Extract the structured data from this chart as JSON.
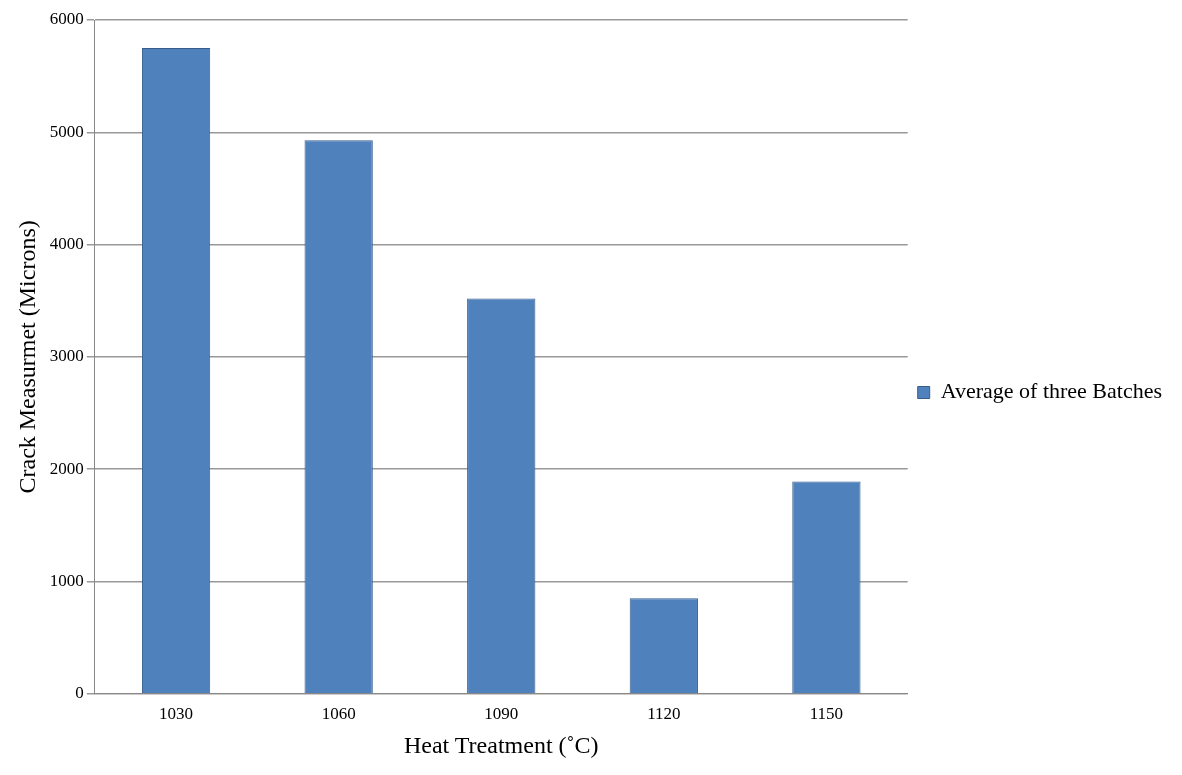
{
  "chart_data": {
    "type": "bar",
    "xlabel": "Heat Treatment (˚C)",
    "ylabel": "Crack Measurmet (Microns)",
    "categories": [
      "1030",
      "1060",
      "1090",
      "1120",
      "1150"
    ],
    "series": [
      {
        "name": "Average of three Batches",
        "color": "#4f81bd",
        "values": [
          5750,
          4930,
          3520,
          850,
          1890
        ]
      }
    ],
    "ylim": [
      0,
      6000
    ],
    "yticks": [
      0,
      1000,
      2000,
      3000,
      4000,
      5000,
      6000
    ],
    "grid": "y",
    "legend": "right"
  }
}
